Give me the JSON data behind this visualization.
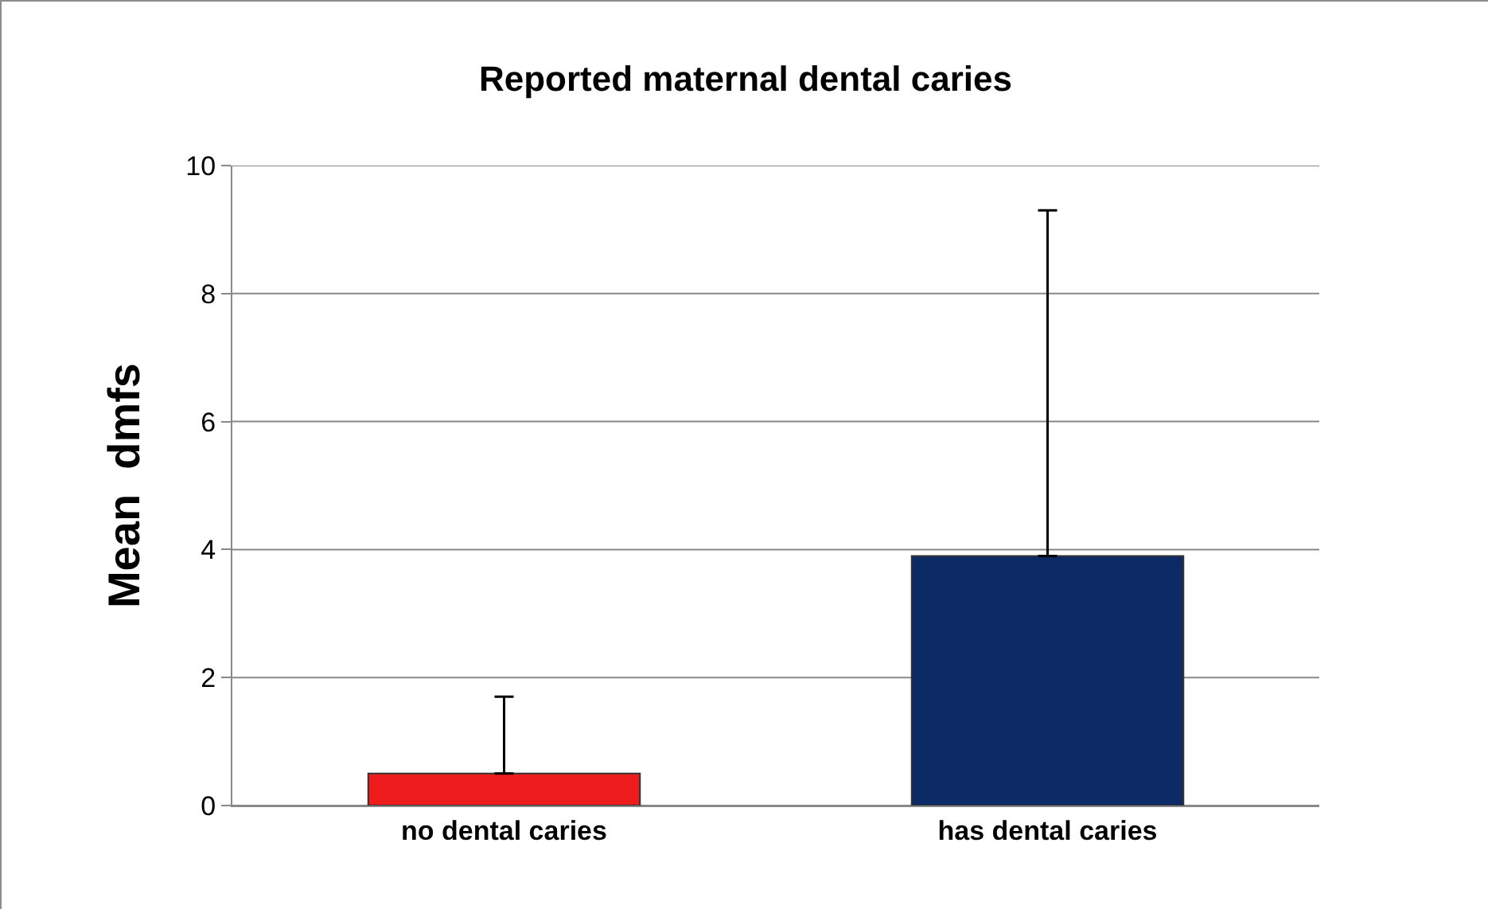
{
  "chart_data": {
    "type": "bar",
    "title": "Reported maternal dental caries",
    "ylabel": "Mean  dmfs",
    "categories": [
      "no dental caries",
      "has dental caries"
    ],
    "values": [
      0.5,
      3.9
    ],
    "colors": [
      "#ee1c1c",
      "#0b2a66"
    ],
    "errors": [
      [
        0.5,
        1.7
      ],
      [
        3.9,
        9.3
      ]
    ],
    "ylim": [
      0,
      10
    ],
    "yticks": [
      0,
      2,
      4,
      6,
      8,
      10
    ],
    "grid": "y"
  }
}
